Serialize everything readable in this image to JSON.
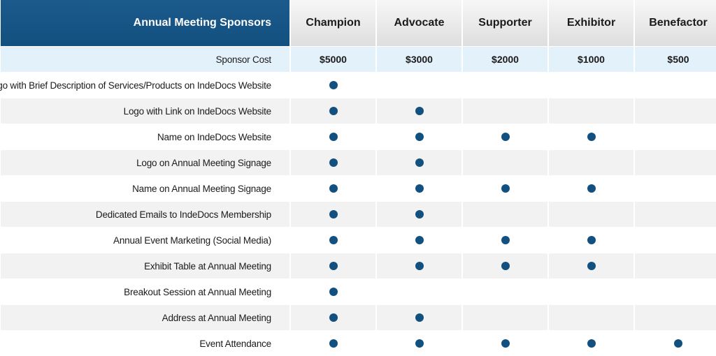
{
  "header": {
    "title": "Annual Meeting Sponsors",
    "tiers": [
      "Champion",
      "Advocate",
      "Supporter",
      "Exhibitor",
      "Benefactor"
    ]
  },
  "cost_row": {
    "label": "Sponsor Cost",
    "values": [
      "$5000",
      "$3000",
      "$2000",
      "$1000",
      "$500"
    ]
  },
  "benefits": [
    {
      "label": "Logo with Brief Description of Services/Products on IndeDocs Website",
      "tiers": [
        true,
        false,
        false,
        false,
        false
      ]
    },
    {
      "label": "Logo with Link on IndeDocs Website",
      "tiers": [
        true,
        true,
        false,
        false,
        false
      ]
    },
    {
      "label": "Name on IndeDocs Website",
      "tiers": [
        true,
        true,
        true,
        true,
        false
      ]
    },
    {
      "label": "Logo on Annual Meeting Signage",
      "tiers": [
        true,
        true,
        false,
        false,
        false
      ]
    },
    {
      "label": "Name on Annual Meeting Signage",
      "tiers": [
        true,
        true,
        true,
        true,
        false
      ]
    },
    {
      "label": "Dedicated Emails to IndeDocs Membership",
      "tiers": [
        true,
        true,
        false,
        false,
        false
      ]
    },
    {
      "label": "Annual Event Marketing (Social Media)",
      "tiers": [
        true,
        true,
        true,
        true,
        false
      ]
    },
    {
      "label": "Exhibit Table at Annual Meeting",
      "tiers": [
        true,
        true,
        true,
        true,
        false
      ]
    },
    {
      "label": "Breakout Session at Annual Meeting",
      "tiers": [
        true,
        false,
        false,
        false,
        false
      ]
    },
    {
      "label": "Address at Annual Meeting",
      "tiers": [
        true,
        true,
        false,
        false,
        false
      ]
    },
    {
      "label": "Event Attendance",
      "tiers": [
        true,
        true,
        true,
        true,
        true
      ]
    }
  ],
  "colors": {
    "header_bg": "#12507f",
    "dot": "#12507f",
    "cost_row_bg": "#e3f1fb",
    "alt_row_bg": "#f2f2f2"
  },
  "icons": {
    "included": "filled-circle-icon"
  }
}
